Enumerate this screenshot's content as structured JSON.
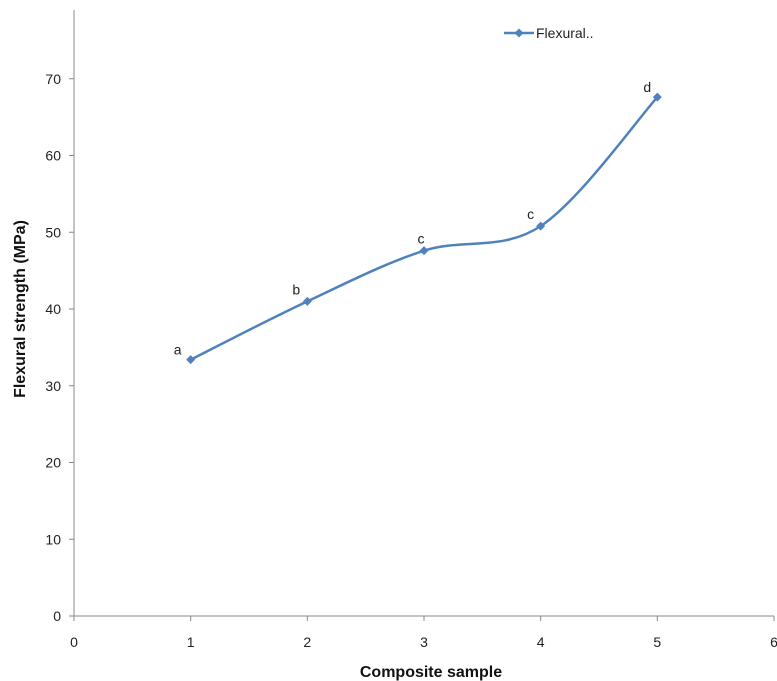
{
  "chart_data": {
    "type": "line",
    "title": "",
    "xlabel": "Composite sample",
    "ylabel": "Flexural strength (MPa)",
    "xlim": [
      0,
      6
    ],
    "ylim": [
      0,
      80
    ],
    "x_ticks": [
      0,
      1,
      2,
      3,
      4,
      5,
      6
    ],
    "y_ticks": [
      0,
      10,
      20,
      30,
      40,
      50,
      60,
      70
    ],
    "grid": false,
    "smoothed": true,
    "legend_position": "top-right",
    "series": [
      {
        "name": "Flexural..",
        "color": "#4f81bd",
        "marker": "diamond",
        "x": [
          1,
          2,
          3,
          4,
          5
        ],
        "y": [
          33.4,
          41.0,
          47.6,
          50.8,
          67.6
        ],
        "point_labels": [
          "a",
          "b",
          "c",
          "c",
          "d"
        ]
      }
    ]
  }
}
